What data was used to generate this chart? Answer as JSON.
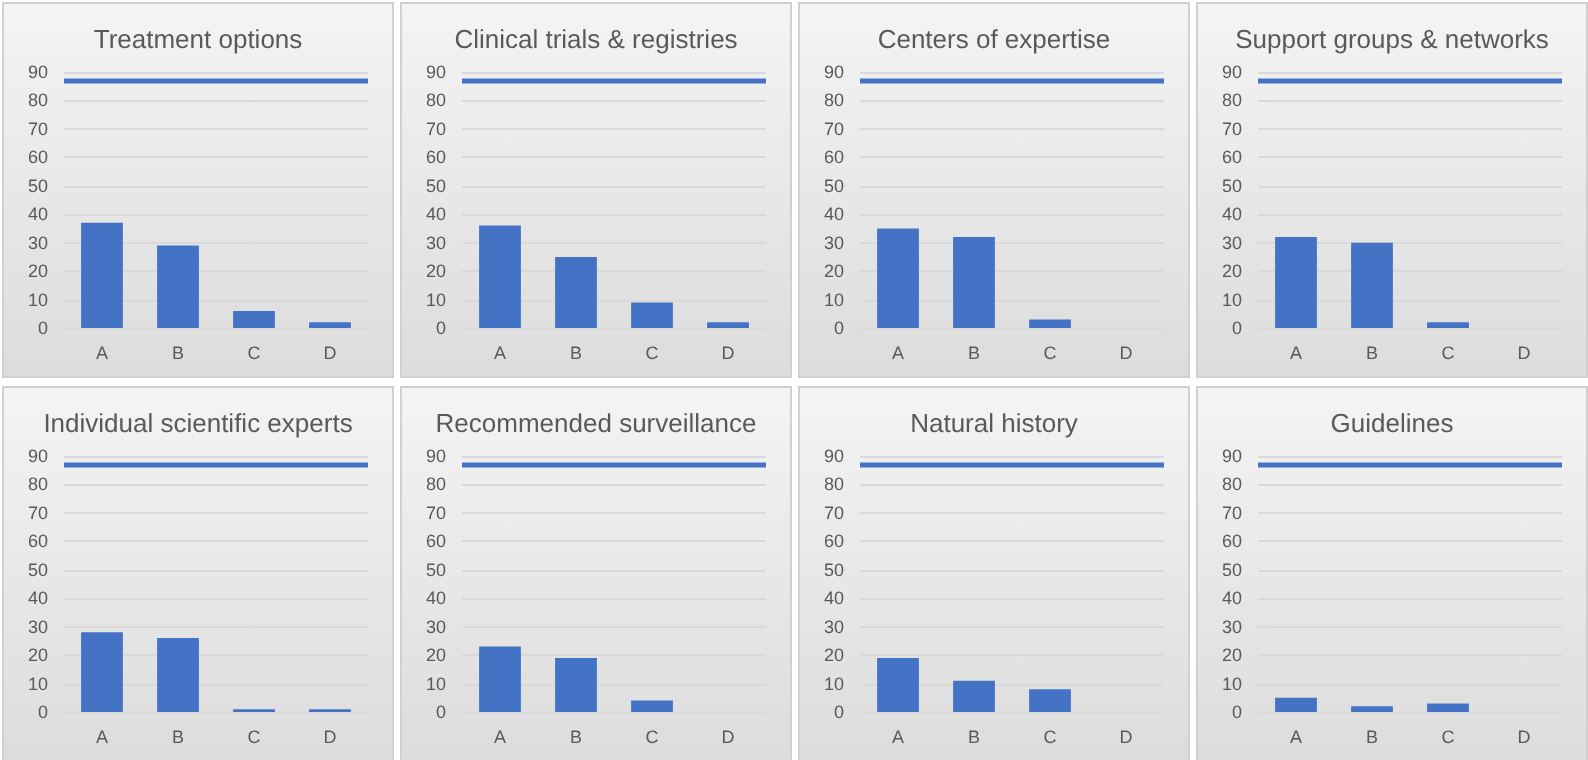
{
  "chart_data": [
    {
      "type": "bar",
      "title": "Treatment options",
      "categories": [
        "A",
        "B",
        "C",
        "D"
      ],
      "values": [
        37,
        29,
        6,
        2
      ],
      "color": "#4472c4",
      "ylim": [
        0,
        90
      ],
      "yticks": [
        0,
        10,
        20,
        30,
        40,
        50,
        60,
        70,
        80,
        90
      ],
      "grid": "y",
      "ref_lines": [
        {
          "axis": "y",
          "value": 87,
          "color": "#4472c4"
        }
      ]
    },
    {
      "type": "bar",
      "title": "Clinical trials & registries",
      "categories": [
        "A",
        "B",
        "C",
        "D"
      ],
      "values": [
        36,
        25,
        9,
        2
      ],
      "color": "#4472c4",
      "ylim": [
        0,
        90
      ],
      "yticks": [
        0,
        10,
        20,
        30,
        40,
        50,
        60,
        70,
        80,
        90
      ],
      "grid": "y",
      "ref_lines": [
        {
          "axis": "y",
          "value": 87,
          "color": "#4472c4"
        }
      ]
    },
    {
      "type": "bar",
      "title": "Centers of expertise",
      "categories": [
        "A",
        "B",
        "C",
        "D"
      ],
      "values": [
        35,
        32,
        3,
        0
      ],
      "color": "#4472c4",
      "ylim": [
        0,
        90
      ],
      "yticks": [
        0,
        10,
        20,
        30,
        40,
        50,
        60,
        70,
        80,
        90
      ],
      "grid": "y",
      "ref_lines": [
        {
          "axis": "y",
          "value": 87,
          "color": "#4472c4"
        }
      ]
    },
    {
      "type": "bar",
      "title": "Support groups & networks",
      "categories": [
        "A",
        "B",
        "C",
        "D"
      ],
      "values": [
        32,
        30,
        2,
        0
      ],
      "color": "#4472c4",
      "ylim": [
        0,
        90
      ],
      "yticks": [
        0,
        10,
        20,
        30,
        40,
        50,
        60,
        70,
        80,
        90
      ],
      "grid": "y",
      "ref_lines": [
        {
          "axis": "y",
          "value": 87,
          "color": "#4472c4"
        }
      ]
    },
    {
      "type": "bar",
      "title": "Individual scientific experts",
      "categories": [
        "A",
        "B",
        "C",
        "D"
      ],
      "values": [
        28,
        26,
        1,
        1
      ],
      "color": "#4472c4",
      "ylim": [
        0,
        90
      ],
      "yticks": [
        0,
        10,
        20,
        30,
        40,
        50,
        60,
        70,
        80,
        90
      ],
      "grid": "y",
      "ref_lines": [
        {
          "axis": "y",
          "value": 87,
          "color": "#4472c4"
        }
      ]
    },
    {
      "type": "bar",
      "title": "Recommended surveillance",
      "categories": [
        "A",
        "B",
        "C",
        "D"
      ],
      "values": [
        23,
        19,
        4,
        0
      ],
      "color": "#4472c4",
      "ylim": [
        0,
        90
      ],
      "yticks": [
        0,
        10,
        20,
        30,
        40,
        50,
        60,
        70,
        80,
        90
      ],
      "grid": "y",
      "ref_lines": [
        {
          "axis": "y",
          "value": 87,
          "color": "#4472c4"
        }
      ]
    },
    {
      "type": "bar",
      "title": "Natural history",
      "categories": [
        "A",
        "B",
        "C",
        "D"
      ],
      "values": [
        19,
        11,
        8,
        0
      ],
      "color": "#4472c4",
      "ylim": [
        0,
        90
      ],
      "yticks": [
        0,
        10,
        20,
        30,
        40,
        50,
        60,
        70,
        80,
        90
      ],
      "grid": "y",
      "ref_lines": [
        {
          "axis": "y",
          "value": 87,
          "color": "#4472c4"
        }
      ]
    },
    {
      "type": "bar",
      "title": "Guidelines",
      "categories": [
        "A",
        "B",
        "C",
        "D"
      ],
      "values": [
        5,
        2,
        3,
        0
      ],
      "color": "#4472c4",
      "ylim": [
        0,
        90
      ],
      "yticks": [
        0,
        10,
        20,
        30,
        40,
        50,
        60,
        70,
        80,
        90
      ],
      "grid": "y",
      "ref_lines": [
        {
          "axis": "y",
          "value": 87,
          "color": "#4472c4"
        }
      ]
    }
  ]
}
